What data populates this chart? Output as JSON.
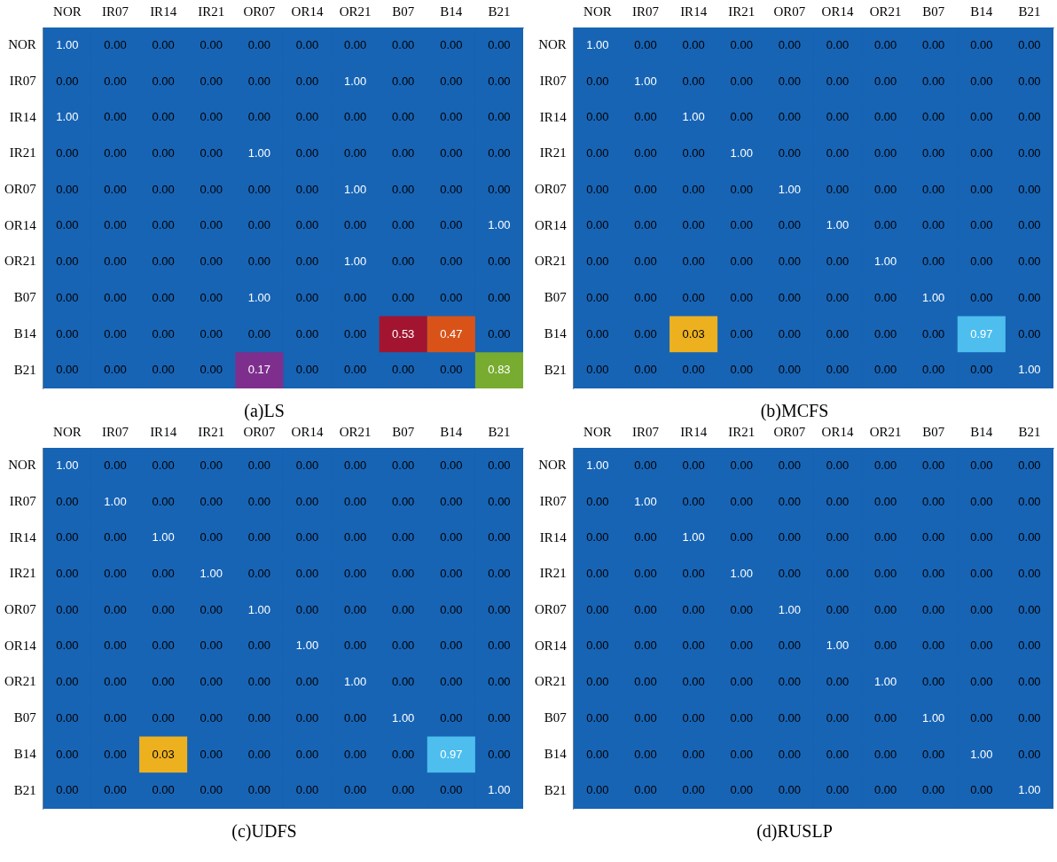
{
  "chart_data": [
    {
      "type": "heatmap",
      "title": "(a)LS",
      "data_labels": true,
      "grid": false,
      "categories": [
        "NOR",
        "IR07",
        "IR14",
        "IR21",
        "OR07",
        "OR14",
        "OR21",
        "B07",
        "B14",
        "B21"
      ],
      "y_categories": [
        "NOR",
        "IR07",
        "IR14",
        "IR21",
        "OR07",
        "OR14",
        "OR21",
        "B07",
        "B14",
        "B21"
      ],
      "cells": [
        [
          1,
          0,
          0,
          0,
          0,
          0,
          0,
          0,
          0,
          0
        ],
        [
          0,
          0,
          0,
          0,
          0,
          0,
          1,
          0,
          0,
          0
        ],
        [
          1,
          0,
          0,
          0,
          0,
          0,
          0,
          0,
          0,
          0
        ],
        [
          0,
          0,
          0,
          0,
          1,
          0,
          0,
          0,
          0,
          0
        ],
        [
          0,
          0,
          0,
          0,
          0,
          0,
          1,
          0,
          0,
          0
        ],
        [
          0,
          0,
          0,
          0,
          0,
          0,
          0,
          0,
          0,
          1
        ],
        [
          0,
          0,
          0,
          0,
          0,
          0,
          1,
          0,
          0,
          0
        ],
        [
          0,
          0,
          0,
          0,
          1,
          0,
          0,
          0,
          0,
          0
        ],
        [
          0,
          0,
          0,
          0,
          0,
          0,
          0,
          0.53,
          0.47,
          0
        ],
        [
          0,
          0,
          0,
          0,
          0.17,
          0,
          0,
          0,
          0,
          0.83
        ]
      ],
      "cell_labels": [
        [
          "1.00",
          "0.00",
          "0.00",
          "0.00",
          "0.00",
          "0.00",
          "0.00",
          "0.00",
          "0.00",
          "0.00"
        ],
        [
          "0.00",
          "0.00",
          "0.00",
          "0.00",
          "0.00",
          "0.00",
          "1.00",
          "0.00",
          "0.00",
          "0.00"
        ],
        [
          "1.00",
          "0.00",
          "0.00",
          "0.00",
          "0.00",
          "0.00",
          "0.00",
          "0.00",
          "0.00",
          "0.00"
        ],
        [
          "0.00",
          "0.00",
          "0.00",
          "0.00",
          "1.00",
          "0.00",
          "0.00",
          "0.00",
          "0.00",
          "0.00"
        ],
        [
          "0.00",
          "0.00",
          "0.00",
          "0.00",
          "0.00",
          "0.00",
          "1.00",
          "0.00",
          "0.00",
          "0.00"
        ],
        [
          "0.00",
          "0.00",
          "0.00",
          "0.00",
          "0.00",
          "0.00",
          "0.00",
          "0.00",
          "0.00",
          "1.00"
        ],
        [
          "0.00",
          "0.00",
          "0.00",
          "0.00",
          "0.00",
          "0.00",
          "1.00",
          "0.00",
          "0.00",
          "0.00"
        ],
        [
          "0.00",
          "0.00",
          "0.00",
          "0.00",
          "1.00",
          "0.00",
          "0.00",
          "0.00",
          "0.00",
          "0.00"
        ],
        [
          "0.00",
          "0.00",
          "0.00",
          "0.00",
          "0.00",
          "0.00",
          "0.00",
          "0.53",
          "0.47",
          "0.00"
        ],
        [
          "0.00",
          "0.00",
          "0.00",
          "0.00",
          "0.17",
          "0.00",
          "0.00",
          "0.00",
          "0.00",
          "0.83"
        ]
      ]
    },
    {
      "type": "heatmap",
      "title": "(b)MCFS",
      "data_labels": true,
      "grid": false,
      "cell_labels": [
        [
          "1.00",
          "0.00",
          "0.00",
          "0.00",
          "0.00",
          "0.00",
          "0.00",
          "0.00",
          "0.00",
          "0.00"
        ],
        [
          "0.00",
          "1.00",
          "0.00",
          "0.00",
          "0.00",
          "0.00",
          "0.00",
          "0.00",
          "0.00",
          "0.00"
        ],
        [
          "0.00",
          "0.00",
          "1.00",
          "0.00",
          "0.00",
          "0.00",
          "0.00",
          "0.00",
          "0.00",
          "0.00"
        ],
        [
          "0.00",
          "0.00",
          "0.00",
          "1.00",
          "0.00",
          "0.00",
          "0.00",
          "0.00",
          "0.00",
          "0.00"
        ],
        [
          "0.00",
          "0.00",
          "0.00",
          "0.00",
          "1.00",
          "0.00",
          "0.00",
          "0.00",
          "0.00",
          "0.00"
        ],
        [
          "0.00",
          "0.00",
          "0.00",
          "0.00",
          "0.00",
          "1.00",
          "0.00",
          "0.00",
          "0.00",
          "0.00"
        ],
        [
          "0.00",
          "0.00",
          "0.00",
          "0.00",
          "0.00",
          "0.00",
          "1.00",
          "0.00",
          "0.00",
          "0.00"
        ],
        [
          "0.00",
          "0.00",
          "0.00",
          "0.00",
          "0.00",
          "0.00",
          "0.00",
          "1.00",
          "0.00",
          "0.00"
        ],
        [
          "0.00",
          "0.00",
          "0.03",
          "0.00",
          "0.00",
          "0.00",
          "0.00",
          "0.00",
          "0.97",
          "0.00"
        ],
        [
          "0.00",
          "0.00",
          "0.00",
          "0.00",
          "0.00",
          "0.00",
          "0.00",
          "0.00",
          "0.00",
          "1.00"
        ]
      ],
      "categories": [
        "NOR",
        "IR07",
        "IR14",
        "IR21",
        "OR07",
        "OR14",
        "OR21",
        "B07",
        "B14",
        "B21"
      ],
      "y_categories": [
        "NOR",
        "IR07",
        "IR14",
        "IR21",
        "OR07",
        "OR14",
        "OR21",
        "B07",
        "B14",
        "B21"
      ],
      "cells": [
        [
          1,
          0,
          0,
          0,
          0,
          0,
          0,
          0,
          0,
          0
        ],
        [
          0,
          1,
          0,
          0,
          0,
          0,
          0,
          0,
          0,
          0
        ],
        [
          0,
          0,
          1,
          0,
          0,
          0,
          0,
          0,
          0,
          0
        ],
        [
          0,
          0,
          0,
          1,
          0,
          0,
          0,
          0,
          0,
          0
        ],
        [
          0,
          0,
          0,
          0,
          1,
          0,
          0,
          0,
          0,
          0
        ],
        [
          0,
          0,
          0,
          0,
          0,
          1,
          0,
          0,
          0,
          0
        ],
        [
          0,
          0,
          0,
          0,
          0,
          0,
          1,
          0,
          0,
          0
        ],
        [
          0,
          0,
          0,
          0,
          0,
          0,
          0,
          1,
          0,
          0
        ],
        [
          0,
          0,
          0.03,
          0,
          0,
          0,
          0,
          0,
          0.97,
          0
        ],
        [
          0,
          0,
          0,
          0,
          0,
          0,
          0,
          0,
          0,
          1
        ]
      ]
    },
    {
      "type": "heatmap",
      "title": "(c)UDFS",
      "data_labels": true,
      "grid": false,
      "cell_labels": [
        [
          "1.00",
          "0.00",
          "0.00",
          "0.00",
          "0.00",
          "0.00",
          "0.00",
          "0.00",
          "0.00",
          "0.00"
        ],
        [
          "0.00",
          "1.00",
          "0.00",
          "0.00",
          "0.00",
          "0.00",
          "0.00",
          "0.00",
          "0.00",
          "0.00"
        ],
        [
          "0.00",
          "0.00",
          "1.00",
          "0.00",
          "0.00",
          "0.00",
          "0.00",
          "0.00",
          "0.00",
          "0.00"
        ],
        [
          "0.00",
          "0.00",
          "0.00",
          "1.00",
          "0.00",
          "0.00",
          "0.00",
          "0.00",
          "0.00",
          "0.00"
        ],
        [
          "0.00",
          "0.00",
          "0.00",
          "0.00",
          "1.00",
          "0.00",
          "0.00",
          "0.00",
          "0.00",
          "0.00"
        ],
        [
          "0.00",
          "0.00",
          "0.00",
          "0.00",
          "0.00",
          "1.00",
          "0.00",
          "0.00",
          "0.00",
          "0.00"
        ],
        [
          "0.00",
          "0.00",
          "0.00",
          "0.00",
          "0.00",
          "0.00",
          "1.00",
          "0.00",
          "0.00",
          "0.00"
        ],
        [
          "0.00",
          "0.00",
          "0.00",
          "0.00",
          "0.00",
          "0.00",
          "0.00",
          "1.00",
          "0.00",
          "0.00"
        ],
        [
          "0.00",
          "0.00",
          "0.03",
          "0.00",
          "0.00",
          "0.00",
          "0.00",
          "0.00",
          "0.97",
          "0.00"
        ],
        [
          "0.00",
          "0.00",
          "0.00",
          "0.00",
          "0.00",
          "0.00",
          "0.00",
          "0.00",
          "0.00",
          "1.00"
        ]
      ],
      "categories": [
        "NOR",
        "IR07",
        "IR14",
        "IR21",
        "OR07",
        "OR14",
        "OR21",
        "B07",
        "B14",
        "B21"
      ],
      "y_categories": [
        "NOR",
        "IR07",
        "IR14",
        "IR21",
        "OR07",
        "OR14",
        "OR21",
        "B07",
        "B14",
        "B21"
      ],
      "cells": [
        [
          1,
          0,
          0,
          0,
          0,
          0,
          0,
          0,
          0,
          0
        ],
        [
          0,
          1,
          0,
          0,
          0,
          0,
          0,
          0,
          0,
          0
        ],
        [
          0,
          0,
          1,
          0,
          0,
          0,
          0,
          0,
          0,
          0
        ],
        [
          0,
          0,
          0,
          1,
          0,
          0,
          0,
          0,
          0,
          0
        ],
        [
          0,
          0,
          0,
          0,
          1,
          0,
          0,
          0,
          0,
          0
        ],
        [
          0,
          0,
          0,
          0,
          0,
          1,
          0,
          0,
          0,
          0
        ],
        [
          0,
          0,
          0,
          0,
          0,
          0,
          1,
          0,
          0,
          0
        ],
        [
          0,
          0,
          0,
          0,
          0,
          0,
          0,
          1,
          0,
          0
        ],
        [
          0,
          0,
          0.03,
          0,
          0,
          0,
          0,
          0,
          0.97,
          0
        ],
        [
          0,
          0,
          0,
          0,
          0,
          0,
          0,
          0,
          0,
          1
        ]
      ]
    },
    {
      "type": "heatmap",
      "title": "(d)RUSLP",
      "data_labels": true,
      "grid": false,
      "cell_labels": [
        [
          "1.00",
          "0.00",
          "0.00",
          "0.00",
          "0.00",
          "0.00",
          "0.00",
          "0.00",
          "0.00",
          "0.00"
        ],
        [
          "0.00",
          "1.00",
          "0.00",
          "0.00",
          "0.00",
          "0.00",
          "0.00",
          "0.00",
          "0.00",
          "0.00"
        ],
        [
          "0.00",
          "0.00",
          "1.00",
          "0.00",
          "0.00",
          "0.00",
          "0.00",
          "0.00",
          "0.00",
          "0.00"
        ],
        [
          "0.00",
          "0.00",
          "0.00",
          "1.00",
          "0.00",
          "0.00",
          "0.00",
          "0.00",
          "0.00",
          "0.00"
        ],
        [
          "0.00",
          "0.00",
          "0.00",
          "0.00",
          "1.00",
          "0.00",
          "0.00",
          "0.00",
          "0.00",
          "0.00"
        ],
        [
          "0.00",
          "0.00",
          "0.00",
          "0.00",
          "0.00",
          "1.00",
          "0.00",
          "0.00",
          "0.00",
          "0.00"
        ],
        [
          "0.00",
          "0.00",
          "0.00",
          "0.00",
          "0.00",
          "0.00",
          "1.00",
          "0.00",
          "0.00",
          "0.00"
        ],
        [
          "0.00",
          "0.00",
          "0.00",
          "0.00",
          "0.00",
          "0.00",
          "0.00",
          "1.00",
          "0.00",
          "0.00"
        ],
        [
          "0.00",
          "0.00",
          "0.00",
          "0.00",
          "0.00",
          "0.00",
          "0.00",
          "0.00",
          "1.00",
          "0.00"
        ],
        [
          "0.00",
          "0.00",
          "0.00",
          "0.00",
          "0.00",
          "0.00",
          "0.00",
          "0.00",
          "0.00",
          "1.00"
        ]
      ],
      "categories": [
        "NOR",
        "IR07",
        "IR14",
        "IR21",
        "OR07",
        "OR14",
        "OR21",
        "B07",
        "B14",
        "B21"
      ],
      "y_categories": [
        "NOR",
        "IR07",
        "IR14",
        "IR21",
        "OR07",
        "OR14",
        "OR21",
        "B07",
        "B14",
        "B21"
      ],
      "cells": [
        [
          1,
          0,
          0,
          0,
          0,
          0,
          0,
          0,
          0,
          0
        ],
        [
          0,
          1,
          0,
          0,
          0,
          0,
          0,
          0,
          0,
          0
        ],
        [
          0,
          0,
          1,
          0,
          0,
          0,
          0,
          0,
          0,
          0
        ],
        [
          0,
          0,
          0,
          1,
          0,
          0,
          0,
          0,
          0,
          0
        ],
        [
          0,
          0,
          0,
          0,
          1,
          0,
          0,
          0,
          0,
          0
        ],
        [
          0,
          0,
          0,
          0,
          0,
          1,
          0,
          0,
          0,
          0
        ],
        [
          0,
          0,
          0,
          0,
          0,
          0,
          1,
          0,
          0,
          0
        ],
        [
          0,
          0,
          0,
          0,
          0,
          0,
          0,
          1,
          0,
          0
        ],
        [
          0,
          0,
          0,
          0,
          0,
          0,
          0,
          0,
          1,
          0
        ],
        [
          0,
          0,
          0,
          0,
          0,
          0,
          0,
          0,
          0,
          1
        ]
      ]
    }
  ]
}
